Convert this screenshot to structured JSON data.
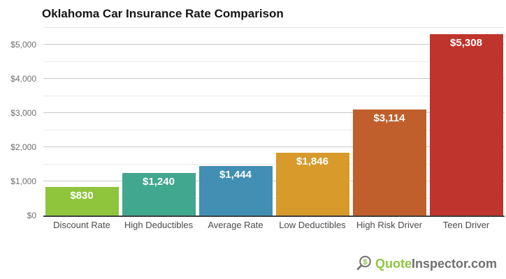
{
  "title": "Oklahoma Car Insurance Rate Comparison",
  "chart_data": {
    "type": "bar",
    "title": "Oklahoma Car Insurance Rate Comparison",
    "categories": [
      "Discount Rate",
      "High Deductibles",
      "Average Rate",
      "Low Deductibles",
      "High Risk Driver",
      "Teen Driver"
    ],
    "values": [
      830,
      1240,
      1444,
      1846,
      3114,
      5308
    ],
    "value_labels": [
      "$830",
      "$1,240",
      "$1,444",
      "$1,846",
      "$3,114",
      "$5,308"
    ],
    "bar_colors": [
      "#8fc43d",
      "#41a78e",
      "#428fb3",
      "#d79a2b",
      "#c05f2c",
      "#bf342c"
    ],
    "xlabel": "",
    "ylabel": "",
    "ylim": [
      0,
      5500
    ],
    "y_ticks": [
      "$0",
      "$1,000",
      "$2,000",
      "$3,000",
      "$4,000",
      "$5,000"
    ],
    "y_tick_values": [
      0,
      1000,
      2000,
      3000,
      4000,
      5000
    ],
    "minor_grid_step": 500,
    "grid": true,
    "legend": false,
    "value_label_position": "inside-top",
    "value_label_color": "#ffffff"
  },
  "colors": {
    "background": "#ffffff",
    "major_gridline": "#c9c9c9",
    "minor_gridline": "#e9e9e9",
    "axis_line": "#3f3f3f",
    "y_tick_label": "#6e6e6e",
    "category_label": "#4b4b4b",
    "title_text": "#141414"
  },
  "branding": {
    "logo_text_primary": "Quote",
    "logo_text_secondary": "Inspector.com",
    "icon_symbol": "$",
    "icon_name": "magnifier-dollar-icon",
    "brand_green": "#8dc63f",
    "brand_gray": "#6f6f6f"
  }
}
